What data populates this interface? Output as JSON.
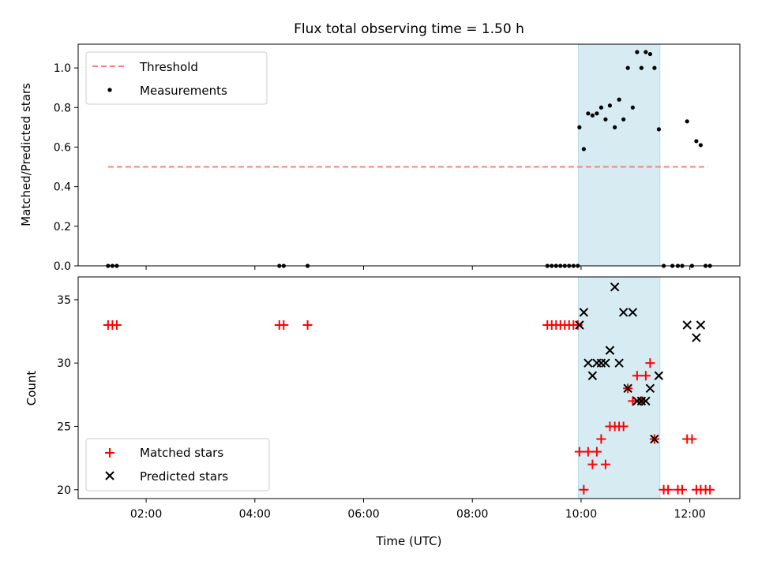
{
  "figure": {
    "title": "Flux total observing time = 1.50 h"
  },
  "chart_data": [
    {
      "type": "scatter",
      "panel": "top",
      "xlabel": "",
      "ylabel": "Matched/Predicted stars",
      "xlim": [
        0.75,
        12.92
      ],
      "ylim": [
        0,
        1.12
      ],
      "yticks": [
        0.0,
        0.2,
        0.4,
        0.6,
        0.8,
        1.0
      ],
      "ytick_labels": [
        "0.0",
        "0.2",
        "0.4",
        "0.6",
        "0.8",
        "1.0"
      ],
      "xticks": [
        2,
        4,
        6,
        8,
        10,
        12
      ],
      "xtick_labels": [
        "",
        "",
        "",
        "",
        "",
        ""
      ],
      "shaded_span": {
        "x": [
          9.95,
          11.45
        ],
        "color": "#add8e6"
      },
      "legend": {
        "placement": "top-left",
        "entries": [
          "Threshold",
          "Measurements"
        ]
      },
      "threshold": {
        "name": "Threshold",
        "x": [
          1.3,
          12.33
        ],
        "y": 0.5,
        "color": "#ff7f7f",
        "style": "dashed"
      },
      "measurements": {
        "name": "Measurements",
        "color": "#000000",
        "points": [
          [
            1.3,
            0.0
          ],
          [
            1.38,
            0.0
          ],
          [
            1.46,
            0.0
          ],
          [
            4.45,
            0.0
          ],
          [
            4.53,
            0.0
          ],
          [
            4.97,
            0.0
          ],
          [
            9.38,
            0.0
          ],
          [
            9.46,
            0.0
          ],
          [
            9.54,
            0.0
          ],
          [
            9.62,
            0.0
          ],
          [
            9.7,
            0.0
          ],
          [
            9.78,
            0.0
          ],
          [
            9.86,
            0.0
          ],
          [
            9.94,
            0.0
          ],
          [
            9.97,
            0.7
          ],
          [
            10.05,
            0.59
          ],
          [
            10.13,
            0.77
          ],
          [
            10.21,
            0.76
          ],
          [
            10.29,
            0.77
          ],
          [
            10.37,
            0.8
          ],
          [
            10.45,
            0.74
          ],
          [
            10.53,
            0.81
          ],
          [
            10.62,
            0.7
          ],
          [
            10.7,
            0.84
          ],
          [
            10.78,
            0.74
          ],
          [
            10.86,
            1.0
          ],
          [
            10.95,
            0.8
          ],
          [
            11.03,
            1.08
          ],
          [
            11.11,
            1.0
          ],
          [
            11.19,
            1.08
          ],
          [
            11.27,
            1.07
          ],
          [
            11.35,
            1.0
          ],
          [
            11.43,
            0.69
          ],
          [
            11.52,
            0.0
          ],
          [
            11.68,
            0.0
          ],
          [
            11.78,
            0.0
          ],
          [
            11.86,
            0.0
          ],
          [
            11.95,
            0.73
          ],
          [
            12.04,
            0.0
          ],
          [
            12.12,
            0.63
          ],
          [
            12.2,
            0.61
          ],
          [
            12.29,
            0.0
          ],
          [
            12.37,
            0.0
          ]
        ]
      }
    },
    {
      "type": "scatter",
      "panel": "bottom",
      "xlabel": "Time (UTC)",
      "ylabel": "Count",
      "xlim": [
        0.75,
        12.92
      ],
      "ylim": [
        19.3,
        36.8
      ],
      "yticks": [
        20,
        25,
        30,
        35
      ],
      "ytick_labels": [
        "20",
        "25",
        "30",
        "35"
      ],
      "xticks": [
        2,
        4,
        6,
        8,
        10,
        12
      ],
      "xtick_labels": [
        "02:00",
        "04:00",
        "06:00",
        "08:00",
        "10:00",
        "12:00"
      ],
      "shaded_span": {
        "x": [
          9.95,
          11.45
        ],
        "color": "#add8e6"
      },
      "legend": {
        "placement": "bottom-left",
        "entries": [
          "Matched stars",
          "Predicted stars"
        ]
      },
      "series": [
        {
          "name": "Matched stars",
          "marker": "plus",
          "color": "#ff0000",
          "points": [
            [
              1.3,
              33
            ],
            [
              1.38,
              33
            ],
            [
              1.46,
              33
            ],
            [
              4.45,
              33
            ],
            [
              4.53,
              33
            ],
            [
              4.97,
              33
            ],
            [
              9.38,
              33
            ],
            [
              9.46,
              33
            ],
            [
              9.54,
              33
            ],
            [
              9.62,
              33
            ],
            [
              9.7,
              33
            ],
            [
              9.78,
              33
            ],
            [
              9.86,
              33
            ],
            [
              9.94,
              33
            ],
            [
              9.97,
              23
            ],
            [
              10.05,
              20
            ],
            [
              10.13,
              23
            ],
            [
              10.21,
              22
            ],
            [
              10.29,
              23
            ],
            [
              10.37,
              24
            ],
            [
              10.45,
              22
            ],
            [
              10.53,
              25
            ],
            [
              10.62,
              25
            ],
            [
              10.7,
              25
            ],
            [
              10.78,
              25
            ],
            [
              10.86,
              28
            ],
            [
              10.95,
              27
            ],
            [
              11.03,
              29
            ],
            [
              11.11,
              27
            ],
            [
              11.19,
              29
            ],
            [
              11.27,
              30
            ],
            [
              11.35,
              24
            ],
            [
              11.52,
              20
            ],
            [
              11.6,
              20
            ],
            [
              11.78,
              20
            ],
            [
              11.86,
              20
            ],
            [
              11.95,
              24
            ],
            [
              12.04,
              24
            ],
            [
              12.12,
              20
            ],
            [
              12.2,
              20
            ],
            [
              12.29,
              20
            ],
            [
              12.37,
              20
            ]
          ]
        },
        {
          "name": "Predicted stars",
          "marker": "x",
          "color": "#000000",
          "points": [
            [
              9.97,
              33
            ],
            [
              10.05,
              34
            ],
            [
              10.13,
              30
            ],
            [
              10.21,
              29
            ],
            [
              10.29,
              30
            ],
            [
              10.37,
              30
            ],
            [
              10.45,
              30
            ],
            [
              10.53,
              31
            ],
            [
              10.62,
              36
            ],
            [
              10.7,
              30
            ],
            [
              10.78,
              34
            ],
            [
              10.86,
              28
            ],
            [
              10.95,
              34
            ],
            [
              11.03,
              27
            ],
            [
              11.11,
              27
            ],
            [
              11.19,
              27
            ],
            [
              11.27,
              28
            ],
            [
              11.35,
              24
            ],
            [
              11.43,
              29
            ],
            [
              11.95,
              33
            ],
            [
              12.12,
              32
            ],
            [
              12.2,
              33
            ]
          ]
        }
      ]
    }
  ]
}
